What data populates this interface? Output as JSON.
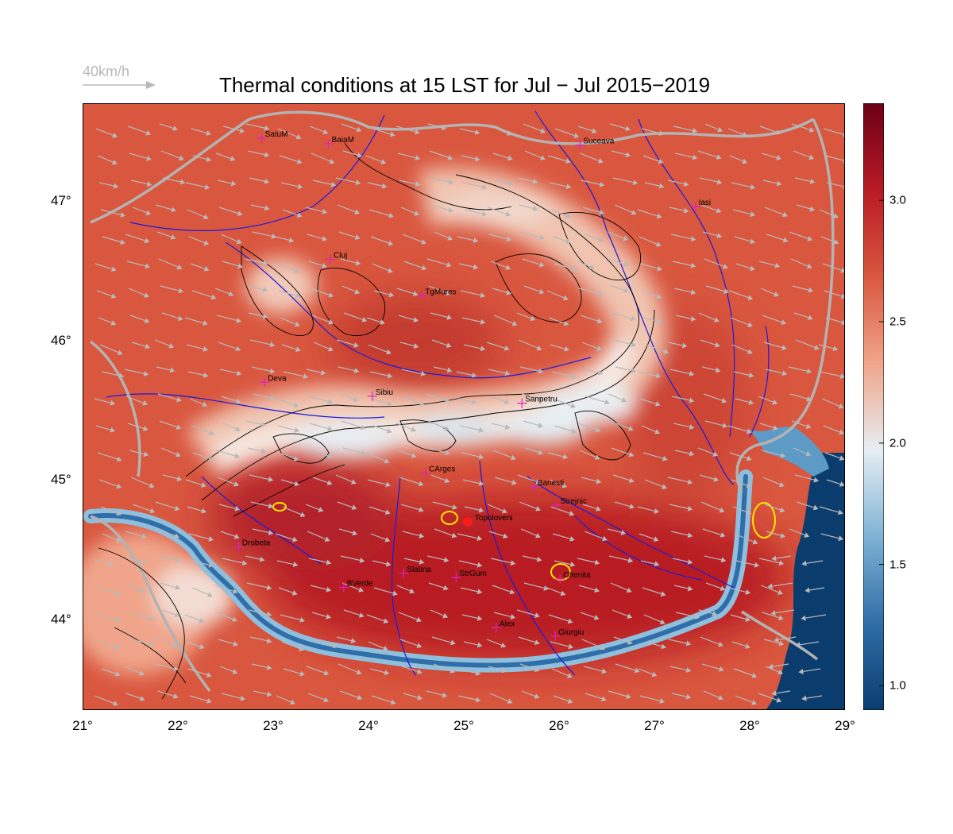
{
  "title": "Thermal conditions at 15 LST for Jul − Jul  2015−2019",
  "wind_scale": {
    "label": "40km/h",
    "color": "#b9b9b9"
  },
  "map": {
    "lon_range": [
      21,
      29
    ],
    "lat_range": [
      43.35,
      47.7
    ],
    "lon_ticks": [
      {
        "v": 21,
        "label": "21°"
      },
      {
        "v": 22,
        "label": "22°"
      },
      {
        "v": 23,
        "label": "23°"
      },
      {
        "v": 24,
        "label": "24°"
      },
      {
        "v": 25,
        "label": "25°"
      },
      {
        "v": 26,
        "label": "26°"
      },
      {
        "v": 27,
        "label": "27°"
      },
      {
        "v": 28,
        "label": "28°"
      },
      {
        "v": 29,
        "label": "29°"
      }
    ],
    "lat_ticks": [
      {
        "v": 44,
        "label": "44°"
      },
      {
        "v": 45,
        "label": "45°"
      },
      {
        "v": 46,
        "label": "46°"
      },
      {
        "v": 47,
        "label": "47°"
      }
    ],
    "colors": {
      "hot": "#b81a24",
      "warm": "#d9573f",
      "mild": "#f0a58a",
      "cool": "#e6eef3",
      "cold": "#7fb2d4",
      "sea": "#0a3d6e",
      "river": "#1a1adf",
      "border": "#b3b3b3",
      "contour": "#000000",
      "wind": "#b9b9b9",
      "city": "#e020c0"
    }
  },
  "cities": [
    {
      "name": "SatuM",
      "lon": 22.88,
      "lat": 47.45
    },
    {
      "name": "BaiaM",
      "lon": 23.58,
      "lat": 47.41
    },
    {
      "name": "Suceava",
      "lon": 26.22,
      "lat": 47.4
    },
    {
      "name": "Iasi",
      "lon": 27.43,
      "lat": 46.96
    },
    {
      "name": "Cluj",
      "lon": 23.6,
      "lat": 46.58
    },
    {
      "name": "TgMures",
      "lon": 24.56,
      "lat": 46.32
    },
    {
      "name": "Deva",
      "lon": 22.91,
      "lat": 45.7
    },
    {
      "name": "Sibiu",
      "lon": 24.04,
      "lat": 45.6
    },
    {
      "name": "Sanpetru",
      "lon": 25.61,
      "lat": 45.55
    },
    {
      "name": "CArges",
      "lon": 24.6,
      "lat": 45.05
    },
    {
      "name": "Banesti",
      "lon": 25.74,
      "lat": 44.95
    },
    {
      "name": "Strejnic",
      "lon": 25.98,
      "lat": 44.82
    },
    {
      "name": "Topoloveni",
      "lon": 25.04,
      "lat": 44.7,
      "highlight": true
    },
    {
      "name": "Drobeta",
      "lon": 22.64,
      "lat": 44.52
    },
    {
      "name": "Slatina",
      "lon": 24.37,
      "lat": 44.33
    },
    {
      "name": "StrGum",
      "lon": 24.92,
      "lat": 44.3
    },
    {
      "name": "Oltenita",
      "lon": 26.01,
      "lat": 44.29
    },
    {
      "name": "BVerde",
      "lon": 23.74,
      "lat": 44.23
    },
    {
      "name": "Alex",
      "lon": 25.34,
      "lat": 43.94
    },
    {
      "name": "Giurgiu",
      "lon": 25.96,
      "lat": 43.88
    }
  ],
  "colorbar": {
    "min": 0.9,
    "max": 3.4,
    "ticks": [
      {
        "v": 1.0,
        "label": "1.0"
      },
      {
        "v": 1.5,
        "label": "1.5"
      },
      {
        "v": 2.0,
        "label": "2.0"
      },
      {
        "v": 2.5,
        "label": "2.5"
      },
      {
        "v": 3.0,
        "label": "3.0"
      }
    ],
    "stops": [
      "#0a3d6e",
      "#2f6ea8",
      "#7fb2d4",
      "#e6eef3",
      "#f0a58a",
      "#d9573f",
      "#b81a24",
      "#6b0016"
    ]
  }
}
